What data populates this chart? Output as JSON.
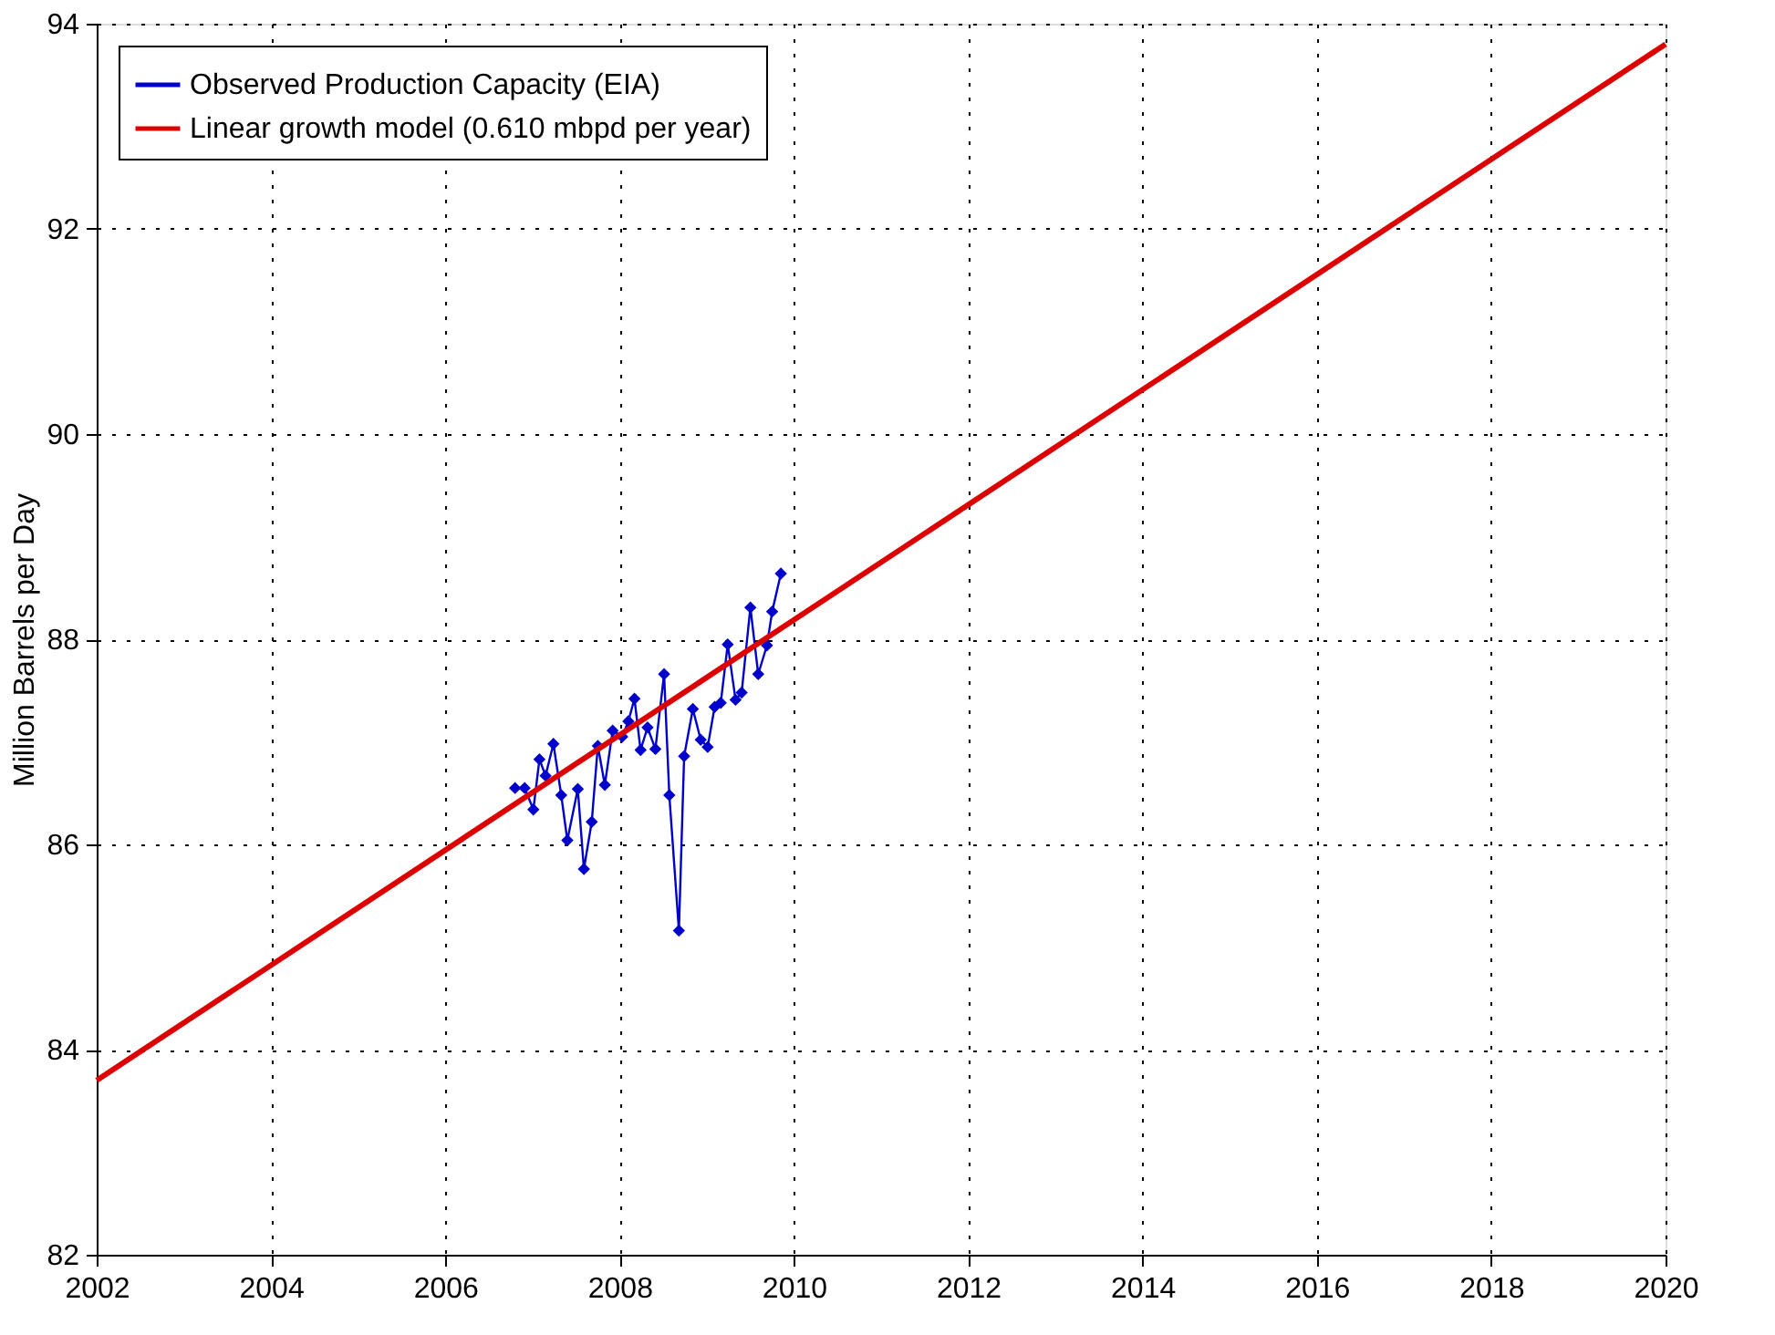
{
  "chart_data": {
    "type": "line",
    "ylabel": "Million Barrels per Day",
    "xlim": [
      2002,
      2020
    ],
    "xticks": [
      2002,
      2004,
      2006,
      2008,
      2010,
      2012,
      2014,
      2016,
      2018,
      2020
    ],
    "ylim": [
      82,
      94
    ],
    "yticks": [
      82,
      84,
      86,
      88,
      90,
      92,
      94
    ],
    "grid": true,
    "legend": "top left",
    "series": [
      {
        "name": "Observed Production Capacity (EIA)",
        "color": "#0000cc",
        "marker": "diamond",
        "x": [
          2006.8,
          2006.91,
          2007.01,
          2007.08,
          2007.15,
          2007.24,
          2007.33,
          2007.4,
          2007.52,
          2007.59,
          2007.68,
          2007.75,
          2007.83,
          2007.92,
          2008.03,
          2008.1,
          2008.17,
          2008.24,
          2008.32,
          2008.41,
          2008.51,
          2008.57,
          2008.68,
          2008.74,
          2008.84,
          2008.93,
          2009.01,
          2009.09,
          2009.16,
          2009.24,
          2009.33,
          2009.4,
          2009.5,
          2009.59,
          2009.69,
          2009.75,
          2009.85
        ],
        "values": [
          86.55,
          86.55,
          86.34,
          86.83,
          86.67,
          86.98,
          86.48,
          86.04,
          86.54,
          85.76,
          86.22,
          86.96,
          86.58,
          87.11,
          87.05,
          87.2,
          87.42,
          86.92,
          87.14,
          86.93,
          87.66,
          86.48,
          85.16,
          86.86,
          87.32,
          87.02,
          86.95,
          87.34,
          87.38,
          87.95,
          87.41,
          87.48,
          88.31,
          87.66,
          87.94,
          88.27,
          88.64
        ]
      },
      {
        "name": "Linear growth model (0.610 mbpd per year)",
        "color": "#dd0000",
        "marker": "none",
        "x": [
          2002,
          2020
        ],
        "values": [
          83.7,
          93.8
        ]
      }
    ]
  }
}
